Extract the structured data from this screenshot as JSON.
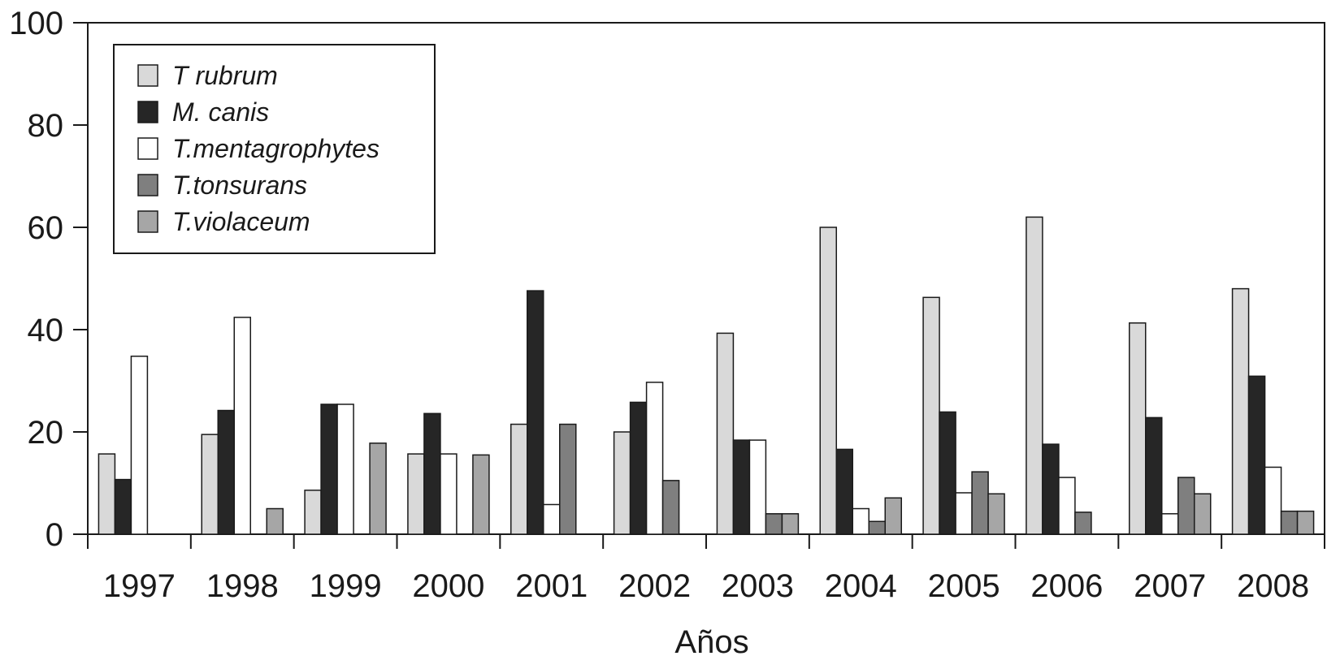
{
  "chart_data": {
    "type": "bar",
    "xlabel": "Años",
    "ylabel": "",
    "ylim": [
      0,
      100
    ],
    "yticks": [
      "0",
      "20",
      "40",
      "60",
      "80",
      "100"
    ],
    "categories": [
      "1997",
      "1998",
      "1999",
      "2000",
      "2001",
      "2002",
      "2003",
      "2004",
      "2005",
      "2006",
      "2007",
      "2008"
    ],
    "legend_position": "top-left",
    "grid": false,
    "series": [
      {
        "name": "T rubrum",
        "color": "#d9d9d9",
        "values": [
          15.7,
          19.5,
          8.6,
          15.7,
          21.5,
          20,
          39.3,
          60,
          46.3,
          62,
          41.3,
          48
        ]
      },
      {
        "name": "M. canis",
        "color": "#262626",
        "values": [
          10.7,
          24.2,
          25.4,
          23.6,
          47.6,
          25.8,
          18.4,
          16.6,
          23.9,
          17.6,
          22.8,
          30.9
        ]
      },
      {
        "name": "T.mentagrophytes",
        "color": "#ffffff",
        "values": [
          34.8,
          42.4,
          25.4,
          15.7,
          5.8,
          29.7,
          18.4,
          5,
          8.1,
          11.1,
          4,
          13.1
        ]
      },
      {
        "name": "T.tonsurans",
        "color": "#7f7f7f",
        "values": [
          0,
          0,
          0,
          0,
          21.5,
          10.5,
          4,
          2.5,
          12.2,
          4.3,
          11.1,
          4.5
        ]
      },
      {
        "name": "T.violaceum",
        "color": "#a6a6a6",
        "values": [
          0,
          5,
          17.8,
          15.5,
          0,
          0,
          4,
          7.1,
          7.9,
          0,
          7.9,
          4.5
        ]
      }
    ]
  }
}
